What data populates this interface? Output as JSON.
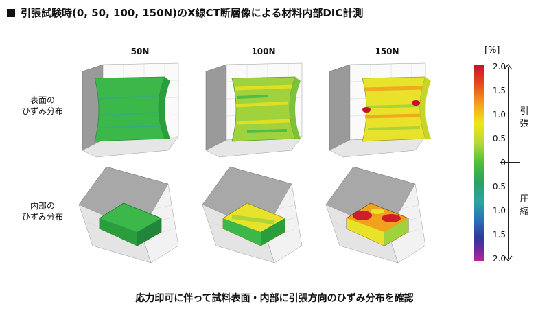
{
  "title": "引張試験時(0, 50, 100, 150N)のX線CT断層像による材料内部DIC計測",
  "columns": [
    "50N",
    "100N",
    "150N"
  ],
  "rows": [
    "表面の\nひずみ分布",
    "内部の\nひずみ分布"
  ],
  "legend": {
    "unit": "[%]",
    "ticks": [
      "2.0",
      "1.5",
      "1.0",
      "0.5",
      "0",
      "-0.5",
      "-1.0",
      "-1.5",
      "-2.0"
    ],
    "tension_label": "引張",
    "compression_label": "圧縮",
    "colors": [
      "#c8102e",
      "#f2a11d",
      "#f2e51b",
      "#4fbf3a",
      "#2aa4a6",
      "#2a6db3",
      "#b4279a"
    ]
  },
  "caption": "応力印可に伴って試料表面・内部に引張方向のひずみ分布を確認"
}
